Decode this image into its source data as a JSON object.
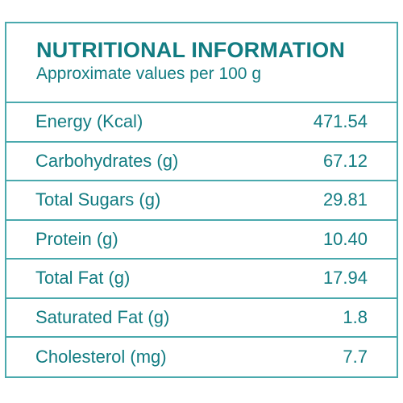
{
  "title": "NUTRITIONAL INFORMATION",
  "subtitle": "Approximate values per 100 g",
  "rows": [
    {
      "label": "Energy (Kcal)",
      "value": "471.54"
    },
    {
      "label": "Carbohydrates (g)",
      "value": "67.12"
    },
    {
      "label": "Total Sugars (g)",
      "value": "29.81"
    },
    {
      "label": "Protein (g)",
      "value": "10.40"
    },
    {
      "label": "Total Fat (g)",
      "value": "17.94"
    },
    {
      "label": "Saturated Fat (g)",
      "value": "1.8"
    },
    {
      "label": "Cholesterol (mg)",
      "value": "7.7"
    }
  ],
  "colors": {
    "text": "#127c82",
    "border": "#4aa9ad"
  }
}
